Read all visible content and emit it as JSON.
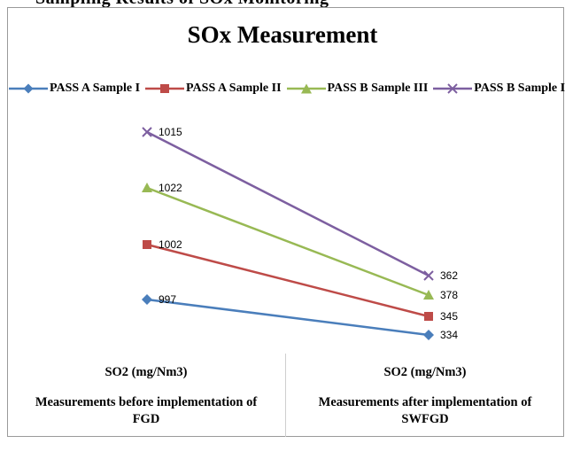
{
  "page": {
    "header_fragment": "Sampling Results of SOx Monitoring"
  },
  "chart_data": {
    "type": "line",
    "title": "SOx Measurement",
    "categories": [
      {
        "unit": "SO2  (mg/Nm3)",
        "description": "Measurements before implementation of FGD"
      },
      {
        "unit": "SO2  (mg/Nm3)",
        "description": "Measurements after implementation of SWFGD"
      }
    ],
    "series": [
      {
        "name": "PASS A Sample I",
        "values": [
          997,
          334
        ],
        "color": "#4a7ebb",
        "marker": "diamond"
      },
      {
        "name": "PASS A Sample II",
        "values": [
          1002,
          345
        ],
        "color": "#be4b48",
        "marker": "square"
      },
      {
        "name": "PASS B Sample III",
        "values": [
          1022,
          378
        ],
        "color": "#98b954",
        "marker": "triangle"
      },
      {
        "name": "PASS B Sample IV",
        "values": [
          1015,
          362
        ],
        "color": "#7d5fa0",
        "marker": "x"
      }
    ],
    "legend_position": "top",
    "grid": false,
    "data_labels": true
  }
}
